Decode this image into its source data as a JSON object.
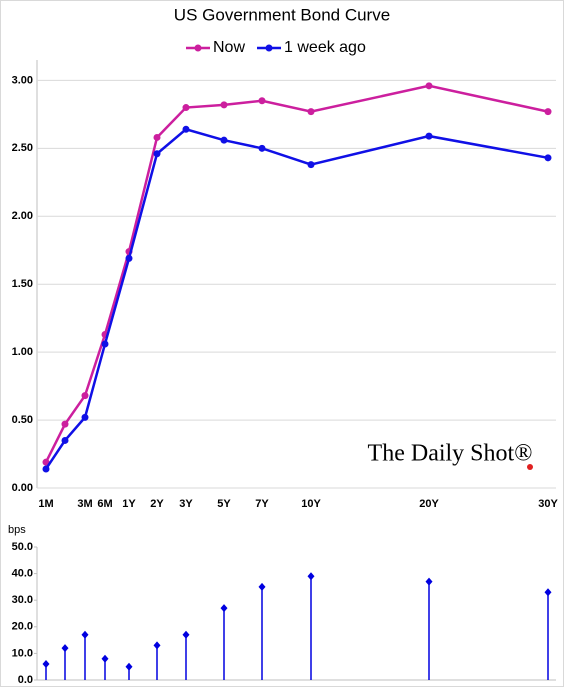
{
  "chart_data": [
    {
      "type": "line",
      "title": "US Government Bond Curve",
      "categories": [
        "1M",
        null,
        "3M",
        "6M",
        "1Y",
        "2Y",
        "3Y",
        "5Y",
        "7Y",
        "10Y",
        "20Y",
        "30Y"
      ],
      "series": [
        {
          "name": "Now",
          "color": "#cc1f9e",
          "values": [
            0.19,
            0.47,
            0.68,
            1.13,
            1.74,
            2.58,
            2.8,
            2.82,
            2.85,
            2.77,
            2.96,
            2.77
          ]
        },
        {
          "name": "1 week ago",
          "color": "#1010e6",
          "values": [
            0.14,
            0.35,
            0.52,
            1.06,
            1.69,
            2.46,
            2.64,
            2.56,
            2.5,
            2.38,
            2.59,
            2.43
          ]
        }
      ],
      "ylim": [
        0,
        3.15
      ],
      "yticks": [
        {
          "value": 0,
          "label": "0.00"
        },
        {
          "value": 0.5,
          "label": "0.50"
        },
        {
          "value": 1,
          "label": "1.00"
        },
        {
          "value": 1.5,
          "label": "1.50"
        },
        {
          "value": 2,
          "label": "2.00"
        },
        {
          "value": 2.5,
          "label": "2.50"
        },
        {
          "value": 3,
          "label": "3.00"
        }
      ],
      "watermark": "The Daily Shot®"
    },
    {
      "type": "lollipop",
      "y_label": "bps",
      "color": "#0000e0",
      "values": [
        6,
        12,
        17,
        8,
        5,
        13,
        17,
        27,
        35,
        39,
        37,
        33
      ],
      "ylim": [
        0,
        50
      ],
      "yticks": [
        {
          "value": 0,
          "label": "0.0"
        },
        {
          "value": 10,
          "label": "10.0"
        },
        {
          "value": 20,
          "label": "20.0"
        },
        {
          "value": 30,
          "label": "30.0"
        },
        {
          "value": 40,
          "label": "40.0"
        },
        {
          "value": 50,
          "label": "50.0"
        }
      ]
    }
  ]
}
